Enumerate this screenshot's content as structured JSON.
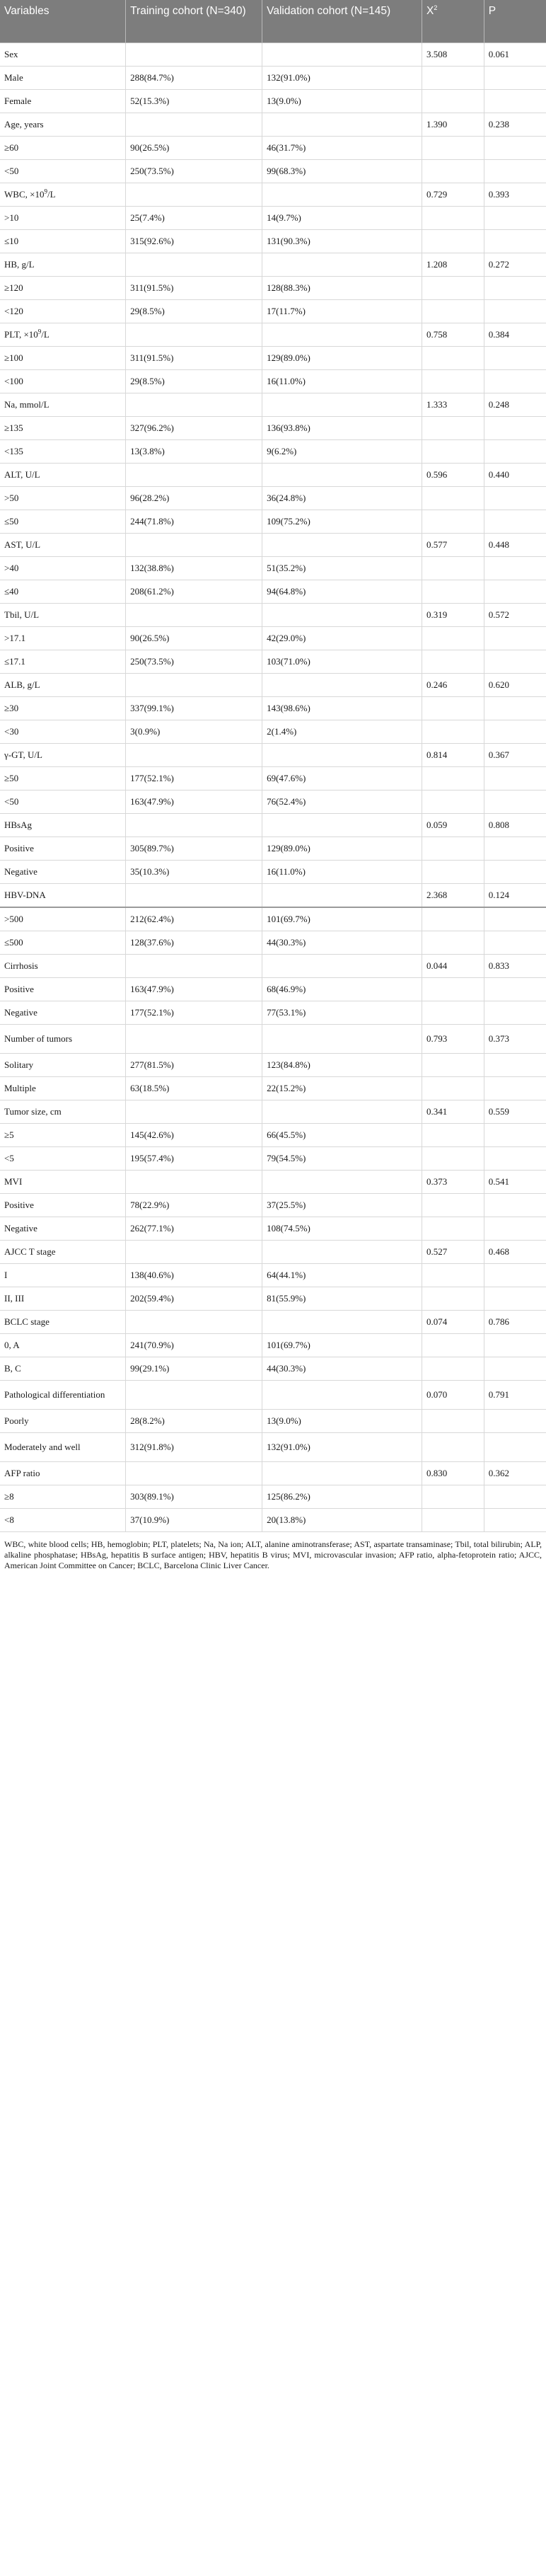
{
  "headers": {
    "variables": "Variables",
    "training": "Training cohort (N=340)",
    "validation": "Validation cohort (N=145)",
    "chi2": "X",
    "chi2_sup": "2",
    "p": "P"
  },
  "rows": [
    {
      "type": "var",
      "label": "Sex",
      "train": "",
      "valid": "",
      "chi": "3.508",
      "p": "0.061"
    },
    {
      "type": "sub",
      "label": "Male",
      "train": "288(84.7%)",
      "valid": "132(91.0%)",
      "chi": "",
      "p": ""
    },
    {
      "type": "sub",
      "label": "Female",
      "train": "52(15.3%)",
      "valid": "13(9.0%)",
      "chi": "",
      "p": ""
    },
    {
      "type": "var",
      "label": "Age, years",
      "train": "",
      "valid": "",
      "chi": "1.390",
      "p": "0.238"
    },
    {
      "type": "sub",
      "label": "≥60",
      "train": "90(26.5%)",
      "valid": "46(31.7%)",
      "chi": "",
      "p": ""
    },
    {
      "type": "sub",
      "label": "<50",
      "train": "250(73.5%)",
      "valid": "99(68.3%)",
      "chi": "",
      "p": ""
    },
    {
      "type": "var",
      "label": "WBC, ×10",
      "label_sup": "9",
      "label_after": "/L",
      "train": "",
      "valid": "",
      "chi": "0.729",
      "p": "0.393"
    },
    {
      "type": "sub",
      "label": ">10",
      "train": "25(7.4%)",
      "valid": "14(9.7%)",
      "chi": "",
      "p": ""
    },
    {
      "type": "sub",
      "label": "≤10",
      "train": "315(92.6%)",
      "valid": "131(90.3%)",
      "chi": "",
      "p": ""
    },
    {
      "type": "var",
      "label": "HB, g/L",
      "train": "",
      "valid": "",
      "chi": "1.208",
      "p": "0.272"
    },
    {
      "type": "sub",
      "label": "≥120",
      "train": "311(91.5%)",
      "valid": "128(88.3%)",
      "chi": "",
      "p": ""
    },
    {
      "type": "sub",
      "label": "<120",
      "train": "29(8.5%)",
      "valid": "17(11.7%)",
      "chi": "",
      "p": ""
    },
    {
      "type": "var",
      "label": "PLT, ×10",
      "label_sup": "9",
      "label_after": "/L",
      "train": "",
      "valid": "",
      "chi": "0.758",
      "p": "0.384"
    },
    {
      "type": "sub",
      "label": "≥100",
      "train": "311(91.5%)",
      "valid": "129(89.0%)",
      "chi": "",
      "p": ""
    },
    {
      "type": "sub",
      "label": "<100",
      "train": "29(8.5%)",
      "valid": "16(11.0%)",
      "chi": "",
      "p": ""
    },
    {
      "type": "var",
      "label": "Na, mmol/L",
      "train": "",
      "valid": "",
      "chi": "1.333",
      "p": "0.248"
    },
    {
      "type": "sub",
      "label": "≥135",
      "train": "327(96.2%)",
      "valid": "136(93.8%)",
      "chi": "",
      "p": ""
    },
    {
      "type": "sub",
      "label": "<135",
      "train": "13(3.8%)",
      "valid": "9(6.2%)",
      "chi": "",
      "p": ""
    },
    {
      "type": "var",
      "label": "ALT, U/L",
      "train": "",
      "valid": "",
      "chi": "0.596",
      "p": "0.440"
    },
    {
      "type": "sub",
      "label": ">50",
      "train": "96(28.2%)",
      "valid": "36(24.8%)",
      "chi": "",
      "p": ""
    },
    {
      "type": "sub",
      "label": "≤50",
      "train": "244(71.8%)",
      "valid": "109(75.2%)",
      "chi": "",
      "p": ""
    },
    {
      "type": "var",
      "label": "AST, U/L",
      "train": "",
      "valid": "",
      "chi": "0.577",
      "p": "0.448"
    },
    {
      "type": "sub",
      "label": ">40",
      "train": "132(38.8%)",
      "valid": "51(35.2%)",
      "chi": "",
      "p": ""
    },
    {
      "type": "sub",
      "label": "≤40",
      "train": "208(61.2%)",
      "valid": "94(64.8%)",
      "chi": "",
      "p": ""
    },
    {
      "type": "var",
      "label": "Tbil, U/L",
      "train": "",
      "valid": "",
      "chi": "0.319",
      "p": "0.572"
    },
    {
      "type": "sub",
      "label": ">17.1",
      "train": "90(26.5%)",
      "valid": "42(29.0%)",
      "chi": "",
      "p": ""
    },
    {
      "type": "sub",
      "label": "≤17.1",
      "train": "250(73.5%)",
      "valid": "103(71.0%)",
      "chi": "",
      "p": ""
    },
    {
      "type": "var",
      "label": "ALB, g/L",
      "train": "",
      "valid": "",
      "chi": "0.246",
      "p": "0.620"
    },
    {
      "type": "sub",
      "label": "≥30",
      "train": "337(99.1%)",
      "valid": "143(98.6%)",
      "chi": "",
      "p": ""
    },
    {
      "type": "sub",
      "label": "<30",
      "train": "3(0.9%)",
      "valid": "2(1.4%)",
      "chi": "",
      "p": ""
    },
    {
      "type": "var",
      "label": "γ-GT, U/L",
      "train": "",
      "valid": "",
      "chi": "0.814",
      "p": "0.367"
    },
    {
      "type": "sub",
      "label": "≥50",
      "train": "177(52.1%)",
      "valid": "69(47.6%)",
      "chi": "",
      "p": ""
    },
    {
      "type": "sub",
      "label": "<50",
      "train": "163(47.9%)",
      "valid": "76(52.4%)",
      "chi": "",
      "p": ""
    },
    {
      "type": "var",
      "label": "HBsAg",
      "train": "",
      "valid": "",
      "chi": "0.059",
      "p": "0.808"
    },
    {
      "type": "sub",
      "label": "Positive",
      "train": "305(89.7%)",
      "valid": "129(89.0%)",
      "chi": "",
      "p": ""
    },
    {
      "type": "sub",
      "label": "Negative",
      "train": "35(10.3%)",
      "valid": "16(11.0%)",
      "chi": "",
      "p": ""
    },
    {
      "type": "var",
      "label": "HBV-DNA",
      "train": "",
      "valid": "",
      "chi": "2.368",
      "p": "0.124"
    },
    {
      "type": "sub",
      "thick": true,
      "label": ">500",
      "train": "212(62.4%)",
      "valid": "101(69.7%)",
      "chi": "",
      "p": ""
    },
    {
      "type": "sub",
      "label": "≤500",
      "train": "128(37.6%)",
      "valid": "44(30.3%)",
      "chi": "",
      "p": ""
    },
    {
      "type": "var",
      "label": "Cirrhosis",
      "train": "",
      "valid": "",
      "chi": "0.044",
      "p": "0.833"
    },
    {
      "type": "sub",
      "label": "Positive",
      "train": "163(47.9%)",
      "valid": "68(46.9%)",
      "chi": "",
      "p": ""
    },
    {
      "type": "sub",
      "label": "Negative",
      "train": "177(52.1%)",
      "valid": "77(53.1%)",
      "chi": "",
      "p": ""
    },
    {
      "type": "var",
      "tall": true,
      "label": "Number of tumors",
      "train": "",
      "valid": "",
      "chi": "0.793",
      "p": "0.373"
    },
    {
      "type": "sub",
      "label": "Solitary",
      "train": "277(81.5%)",
      "valid": "123(84.8%)",
      "chi": "",
      "p": ""
    },
    {
      "type": "sub",
      "label": "Multiple",
      "train": "63(18.5%)",
      "valid": "22(15.2%)",
      "chi": "",
      "p": ""
    },
    {
      "type": "var",
      "label": "Tumor size, cm",
      "train": "",
      "valid": "",
      "chi": "0.341",
      "p": "0.559"
    },
    {
      "type": "sub",
      "label": "≥5",
      "train": "145(42.6%)",
      "valid": "66(45.5%)",
      "chi": "",
      "p": ""
    },
    {
      "type": "sub",
      "label": "<5",
      "train": "195(57.4%)",
      "valid": "79(54.5%)",
      "chi": "",
      "p": ""
    },
    {
      "type": "var",
      "label": "MVI",
      "train": "",
      "valid": "",
      "chi": "0.373",
      "p": "0.541"
    },
    {
      "type": "sub",
      "label": "Positive",
      "train": "78(22.9%)",
      "valid": "37(25.5%)",
      "chi": "",
      "p": ""
    },
    {
      "type": "sub",
      "label": "Negative",
      "train": "262(77.1%)",
      "valid": "108(74.5%)",
      "chi": "",
      "p": ""
    },
    {
      "type": "var",
      "label": "AJCC T stage",
      "train": "",
      "valid": "",
      "chi": "0.527",
      "p": "0.468"
    },
    {
      "type": "sub",
      "label": "I",
      "train": "138(40.6%)",
      "valid": "64(44.1%)",
      "chi": "",
      "p": ""
    },
    {
      "type": "sub",
      "label": "II, III",
      "train": "202(59.4%)",
      "valid": "81(55.9%)",
      "chi": "",
      "p": ""
    },
    {
      "type": "var",
      "label": "BCLC stage",
      "train": "",
      "valid": "",
      "chi": "0.074",
      "p": "0.786"
    },
    {
      "type": "sub",
      "label": "0, A",
      "train": "241(70.9%)",
      "valid": "101(69.7%)",
      "chi": "",
      "p": ""
    },
    {
      "type": "sub",
      "label": "B, C",
      "train": "99(29.1%)",
      "valid": "44(30.3%)",
      "chi": "",
      "p": ""
    },
    {
      "type": "var",
      "tall": true,
      "label": "Pathological differentiation",
      "train": "",
      "valid": "",
      "chi": "0.070",
      "p": "0.791"
    },
    {
      "type": "sub",
      "label": "Poorly",
      "train": "28(8.2%)",
      "valid": "13(9.0%)",
      "chi": "",
      "p": ""
    },
    {
      "type": "sub",
      "tall": true,
      "label": "Moderately and well",
      "train": "312(91.8%)",
      "valid": "132(91.0%)",
      "chi": "",
      "p": ""
    },
    {
      "type": "var",
      "label": "AFP ratio",
      "train": "",
      "valid": "",
      "chi": "0.830",
      "p": "0.362"
    },
    {
      "type": "sub",
      "label": "≥8",
      "train": "303(89.1%)",
      "valid": "125(86.2%)",
      "chi": "",
      "p": ""
    },
    {
      "type": "sub",
      "label": "<8",
      "train": "37(10.9%)",
      "valid": "20(13.8%)",
      "chi": "",
      "p": ""
    }
  ],
  "footnote": "WBC, white blood cells; HB, hemoglobin; PLT, platelets; Na, Na ion; ALT, alanine aminotransferase; AST, aspartate transaminase; Tbil, total bilirubin; ALP, alkaline phosphatase; HBsAg, hepatitis B surface antigen; HBV, hepatitis B virus; MVI, microvascular invasion; AFP ratio, alpha-fetoprotein ratio; AJCC, American Joint Committee on Cancer; BCLC, Barcelona Clinic Liver Cancer."
}
